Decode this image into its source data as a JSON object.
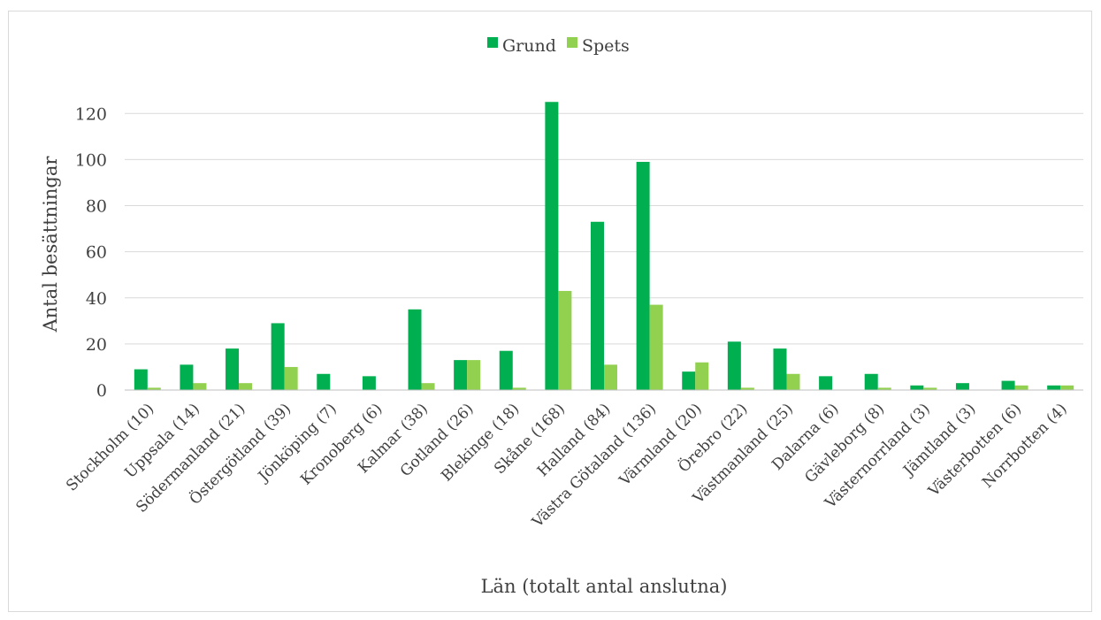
{
  "chart_data": {
    "type": "bar",
    "title": "",
    "xlabel": "Län (totalt antal anslutna)",
    "ylabel": "Antal besättningar",
    "ylim": [
      0,
      130
    ],
    "yticks": [
      0,
      20,
      40,
      60,
      80,
      100,
      120
    ],
    "grid": true,
    "legend_position": "top-center",
    "categories": [
      "Stockholm (10)",
      "Uppsala (14)",
      "Södermanland (21)",
      "Östergötland (39)",
      "Jönköping (7)",
      "Kronoberg (6)",
      "Kalmar (38)",
      "Gotland (26)",
      "Blekinge (18)",
      "Skåne (168)",
      "Halland (84)",
      "Västra Götaland (136)",
      "Värmland (20)",
      "Örebro (22)",
      "Västmanland (25)",
      "Dalarna (6)",
      "Gävleborg (8)",
      "Västernorrland (3)",
      "Jämtland (3)",
      "Västerbotten (6)",
      "Norrbotten (4)"
    ],
    "series": [
      {
        "name": "Grund",
        "color": "#00b050",
        "values": [
          9,
          11,
          18,
          29,
          7,
          6,
          35,
          13,
          17,
          125,
          73,
          99,
          8,
          21,
          18,
          6,
          7,
          2,
          3,
          4,
          2
        ]
      },
      {
        "name": "Spets",
        "color": "#92d050",
        "values": [
          1,
          3,
          3,
          10,
          0,
          0,
          3,
          13,
          1,
          43,
          11,
          37,
          12,
          1,
          7,
          0,
          1,
          1,
          0,
          2,
          2
        ]
      }
    ]
  }
}
